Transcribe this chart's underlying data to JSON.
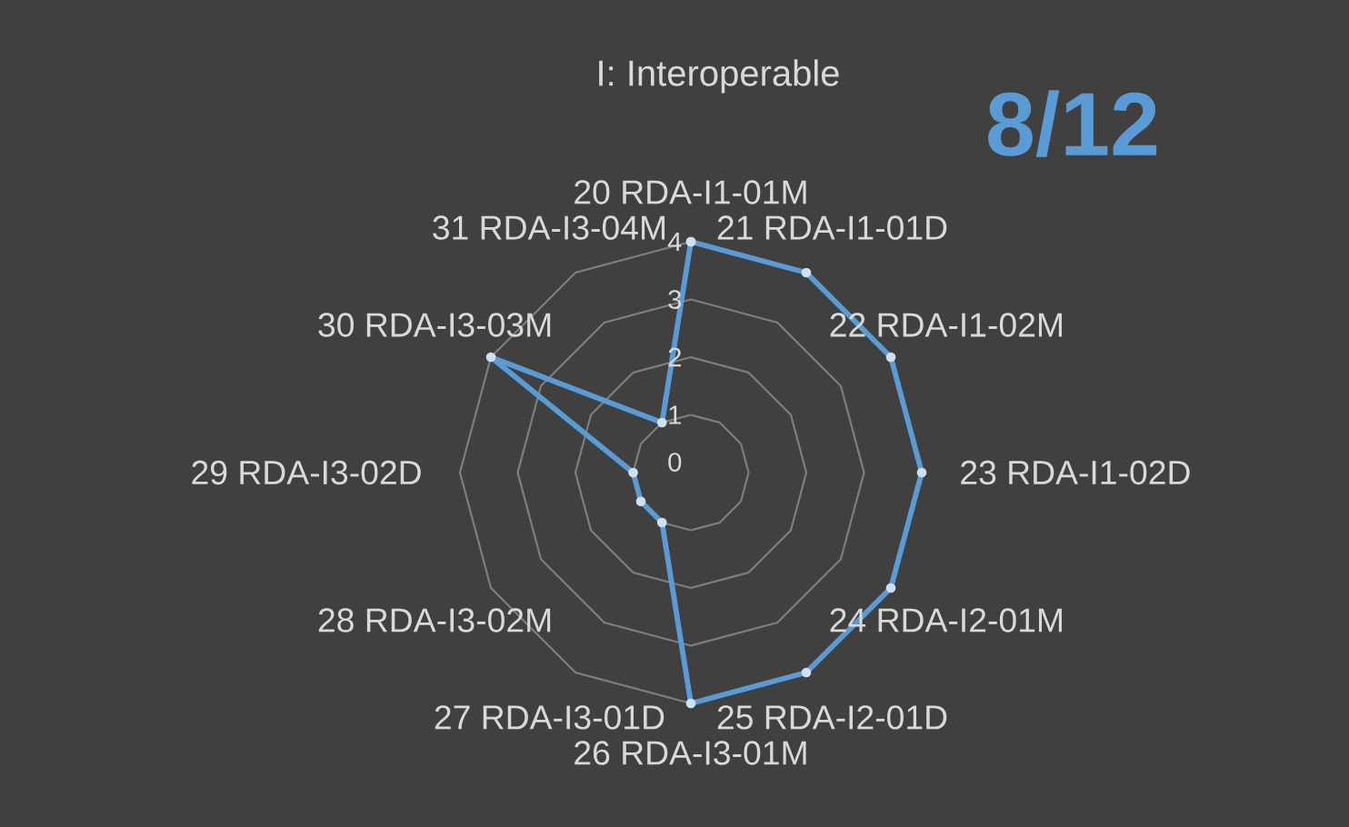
{
  "chart_data": {
    "type": "radar",
    "title": "I: Interoperable",
    "annotations": [
      "8/12"
    ],
    "categories": [
      "20 RDA-I1-01M",
      "21 RDA-I1-01D",
      "22 RDA-I1-02M",
      "23 RDA-I1-02D",
      "24 RDA-I2-01M",
      "25 RDA-I2-01D",
      "26 RDA-I3-01M",
      "27 RDA-I3-01D",
      "28 RDA-I3-02M",
      "29 RDA-I3-02D",
      "30 RDA-I3-03M",
      "31 RDA-I3-04M"
    ],
    "series": [
      {
        "color": "#5b9bd5",
        "values": [
          4,
          4,
          4,
          4,
          4,
          4,
          4,
          1,
          1,
          1,
          4,
          1
        ]
      }
    ],
    "ylim": [
      0,
      4
    ],
    "yticks": [
      0,
      1,
      2,
      3,
      4
    ],
    "grid": true,
    "marker": "circle"
  }
}
